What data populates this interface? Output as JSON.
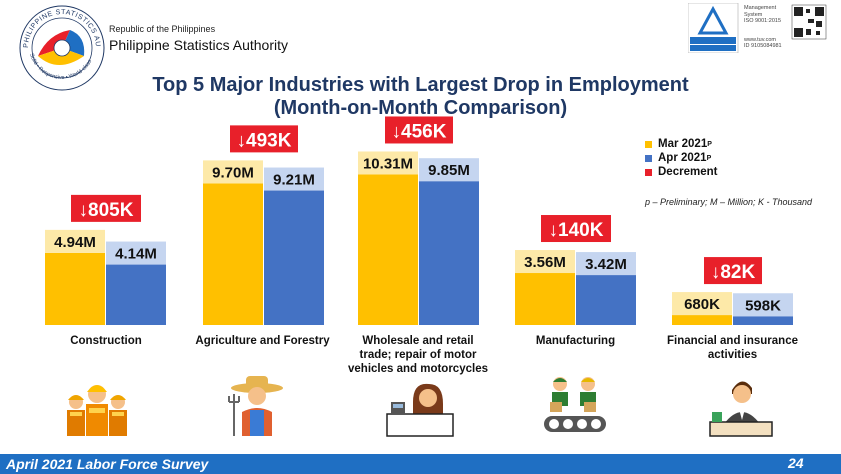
{
  "header": {
    "republic": "Republic of the Philippines",
    "org": "Philippine Statistics Authority",
    "seal_top_text": "PHILIPPINE STATISTICS AUTHORITY",
    "seal_bottom_text": "Solid • Responsive • World-class",
    "cert_lines": [
      "Management",
      "System",
      "ISO 9001:2015",
      "www.tuv.com",
      "ID 9105084981"
    ],
    "cert_badge": "TÜVRheinland CERTIFIED"
  },
  "title": {
    "line1": "Top 5 Major Industries with Largest Drop in Employment",
    "line2": "(Month-on-Month Comparison)"
  },
  "legend": {
    "items": [
      {
        "label": "Mar 2021",
        "sup": "P",
        "color": "#ffc000"
      },
      {
        "label": "Apr 2021",
        "sup": "P",
        "color": "#4472c4"
      },
      {
        "label": "Decrement",
        "sup": "",
        "color": "#e8202a"
      }
    ],
    "note": "p – Preliminary; M – Million; K - Thousand"
  },
  "chart_data": {
    "type": "bar",
    "categories": [
      "Construction",
      "Agriculture and Forestry",
      "Wholesale and retail trade; repair of motor vehicles and motorcycles",
      "Manufacturing",
      "Financial and insurance activities"
    ],
    "category_lines": [
      [
        "Construction"
      ],
      [
        "Agriculture and Forestry"
      ],
      [
        "Wholesale and retail",
        "trade; repair of motor",
        "vehicles and motorcycles"
      ],
      [
        "Manufacturing"
      ],
      [
        "Financial and insurance",
        "activities"
      ]
    ],
    "series": [
      {
        "name": "Mar 2021p",
        "values": [
          4.94,
          9.7,
          10.31,
          3.56,
          0.68
        ],
        "labels": [
          "4.94M",
          "9.70M",
          "10.31M",
          "3.56M",
          "680K"
        ]
      },
      {
        "name": "Apr 2021p",
        "values": [
          4.14,
          9.21,
          9.85,
          3.42,
          0.598
        ],
        "labels": [
          "4.14M",
          "9.21M",
          "9.85M",
          "3.42M",
          "598K"
        ]
      }
    ],
    "decrements": [
      "↓805K",
      "↓493K",
      "↓456K",
      "↓140K",
      "↓82K"
    ],
    "unit": "Million"
  },
  "icons": [
    "construction-workers-icon",
    "farmer-icon",
    "shopkeeper-icon",
    "factory-workers-icon",
    "office-worker-icon"
  ],
  "footer": {
    "left": "April 2021 Labor Force Survey",
    "page": "24"
  }
}
